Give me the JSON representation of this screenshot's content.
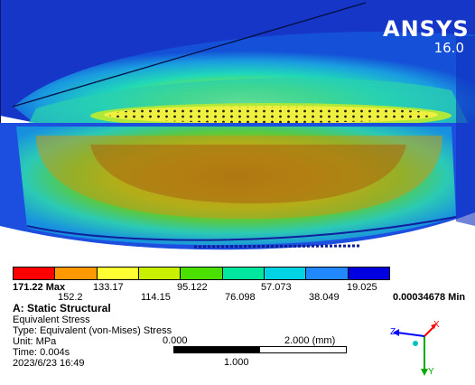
{
  "brand": {
    "name": "ANSYS",
    "version": "16.0"
  },
  "legend": {
    "max_label": "171.22 Max",
    "min_label": "0.00034678 Min",
    "top_values": [
      "133.17",
      "95.122",
      "57.073",
      "19.025"
    ],
    "bottom_values": [
      "152.2",
      "114.15",
      "76.098",
      "38.049"
    ],
    "colors": [
      "#ff0000",
      "#ff9900",
      "#ffff33",
      "#c8f000",
      "#4be000",
      "#00e8a0",
      "#00d4e4",
      "#2288ff",
      "#0000e0"
    ]
  },
  "info": {
    "analysis": "A: Static Structural",
    "result": "Equivalent Stress",
    "type": "Type: Equivalent (von-Mises) Stress",
    "unit": "Unit: MPa",
    "time": "Time: 0.004s",
    "date": "2023/6/23 16:49"
  },
  "scale_bar": {
    "left": "0.000",
    "right": "2.000 (mm)",
    "mid": "1.000"
  },
  "triad": {
    "x": "X",
    "y": "Y",
    "z": "Z",
    "x_color": "#ff0000",
    "y_color": "#00aa00",
    "z_color": "#0000ff"
  }
}
